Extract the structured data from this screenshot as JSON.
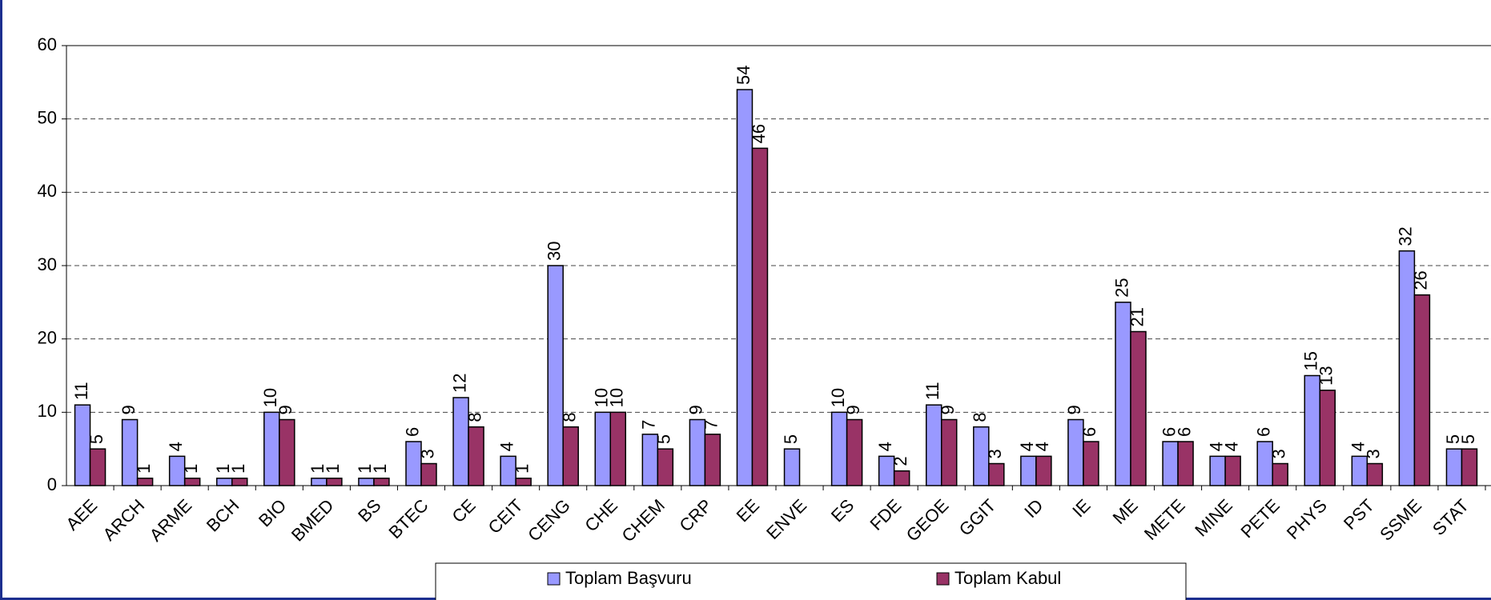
{
  "chart_data": {
    "type": "bar",
    "categories": [
      "AEE",
      "ARCH",
      "ARME",
      "BCH",
      "BIO",
      "BMED",
      "BS",
      "BTEC",
      "CE",
      "CEIT",
      "CENG",
      "CHE",
      "CHEM",
      "CRP",
      "EE",
      "ENVE",
      "ES",
      "FDE",
      "GEOE",
      "GGIT",
      "ID",
      "IE",
      "ME",
      "METE",
      "MINE",
      "PETE",
      "PHYS",
      "PST",
      "SSME",
      "STAT"
    ],
    "series": [
      {
        "name": "Toplam Başvuru",
        "color": "#9999ff",
        "values": [
          11,
          9,
          4,
          1,
          10,
          1,
          1,
          6,
          12,
          4,
          30,
          10,
          7,
          9,
          54,
          5,
          10,
          4,
          11,
          8,
          4,
          9,
          25,
          6,
          4,
          6,
          15,
          4,
          32,
          5
        ]
      },
      {
        "name": "Toplam Kabul",
        "color": "#993366",
        "values": [
          5,
          1,
          1,
          1,
          9,
          1,
          1,
          3,
          8,
          1,
          8,
          10,
          5,
          7,
          46,
          null,
          9,
          2,
          9,
          3,
          4,
          6,
          21,
          6,
          4,
          3,
          13,
          3,
          26,
          5
        ]
      }
    ],
    "ylim": [
      0,
      60
    ],
    "yticks": [
      0,
      10,
      20,
      30,
      40,
      50,
      60
    ],
    "grid": true
  }
}
